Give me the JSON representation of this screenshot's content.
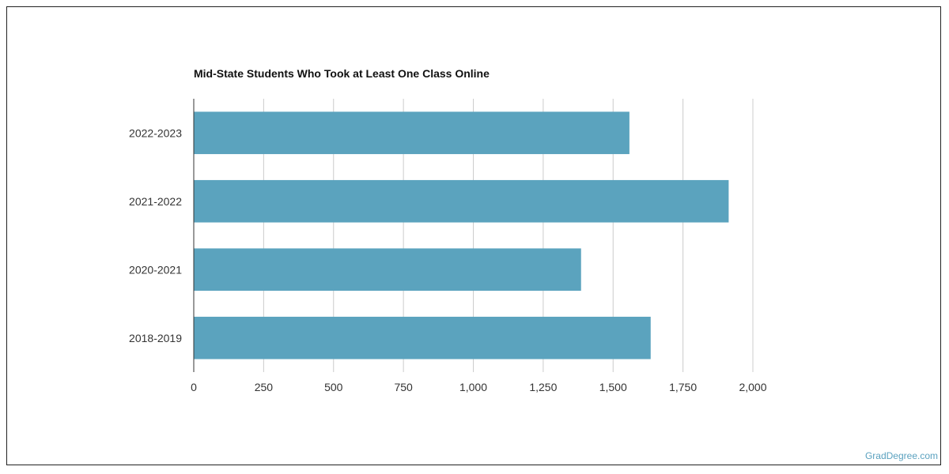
{
  "chart_data": {
    "type": "bar",
    "orientation": "horizontal",
    "title": "Mid-State Students Who Took at Least One Class Online",
    "categories": [
      "2022-2023",
      "2021-2022",
      "2020-2021",
      "2018-2019"
    ],
    "values": [
      1557,
      1912,
      1384,
      1633
    ],
    "xlim": [
      0,
      2000
    ],
    "x_ticks": [
      0,
      250,
      500,
      750,
      1000,
      1250,
      1500,
      1750,
      2000
    ],
    "x_tick_labels": [
      "0",
      "250",
      "500",
      "750",
      "1,000",
      "1,250",
      "1,500",
      "1,750",
      "2,000"
    ],
    "xlabel": "",
    "ylabel": "",
    "grid": "vertical",
    "legend": "none",
    "bar_color": "#5ba3be"
  },
  "footer": {
    "watermark": "GradDegree.com"
  }
}
